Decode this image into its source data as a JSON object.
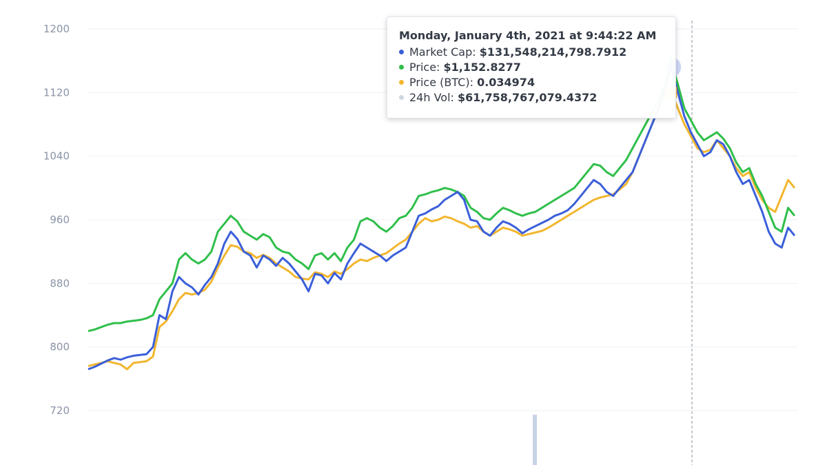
{
  "chart_data": {
    "type": "line",
    "y_ticks": [
      "1200",
      "1120",
      "1040",
      "960",
      "880",
      "800",
      "720"
    ],
    "ylim": [
      720,
      1200
    ],
    "grid": true,
    "series": [
      {
        "key": "market_cap",
        "color": "#3b5fd9",
        "values": [
          772,
          775,
          779,
          783,
          786,
          784,
          787,
          789,
          790,
          791,
          800,
          840,
          835,
          870,
          888,
          880,
          875,
          866,
          878,
          888,
          905,
          930,
          945,
          936,
          920,
          915,
          900,
          915,
          910,
          902,
          912,
          905,
          895,
          885,
          870,
          892,
          890,
          880,
          893,
          885,
          905,
          918,
          930,
          925,
          920,
          915,
          908,
          915,
          920,
          925,
          945,
          965,
          968,
          973,
          977,
          985,
          990,
          995,
          985,
          960,
          958,
          945,
          940,
          950,
          958,
          955,
          950,
          943,
          948,
          952,
          956,
          960,
          965,
          968,
          972,
          980,
          990,
          1000,
          1010,
          1005,
          995,
          990,
          1000,
          1010,
          1020,
          1040,
          1060,
          1080,
          1100,
          1125,
          1152,
          1120,
          1090,
          1070,
          1055,
          1040,
          1045,
          1060,
          1055,
          1040,
          1020,
          1005,
          1010,
          990,
          970,
          945,
          930,
          925,
          950,
          940
        ]
      },
      {
        "key": "price",
        "color": "#2fbf4a",
        "values": [
          820,
          822,
          825,
          828,
          830,
          830,
          832,
          833,
          834,
          836,
          840,
          860,
          870,
          880,
          910,
          918,
          910,
          905,
          910,
          920,
          945,
          955,
          965,
          958,
          945,
          940,
          935,
          942,
          938,
          925,
          920,
          918,
          910,
          905,
          898,
          915,
          918,
          910,
          918,
          908,
          925,
          935,
          958,
          962,
          958,
          950,
          945,
          952,
          962,
          965,
          975,
          990,
          992,
          995,
          997,
          1000,
          998,
          995,
          990,
          975,
          970,
          962,
          960,
          968,
          975,
          972,
          968,
          965,
          968,
          970,
          975,
          980,
          985,
          990,
          995,
          1000,
          1010,
          1020,
          1030,
          1028,
          1020,
          1015,
          1025,
          1035,
          1050,
          1065,
          1080,
          1095,
          1110,
          1130,
          1158,
          1130,
          1100,
          1085,
          1070,
          1060,
          1065,
          1070,
          1062,
          1050,
          1032,
          1020,
          1025,
          1005,
          990,
          970,
          950,
          945,
          975,
          965
        ]
      },
      {
        "key": "price_btc",
        "color": "#f2b62e",
        "values": [
          776,
          778,
          780,
          782,
          780,
          778,
          772,
          780,
          781,
          782,
          788,
          825,
          832,
          845,
          860,
          868,
          866,
          868,
          872,
          882,
          900,
          915,
          928,
          926,
          920,
          918,
          912,
          916,
          912,
          905,
          900,
          895,
          888,
          886,
          885,
          894,
          892,
          888,
          895,
          892,
          898,
          905,
          910,
          908,
          912,
          915,
          918,
          924,
          930,
          935,
          945,
          955,
          962,
          958,
          960,
          964,
          962,
          958,
          955,
          950,
          952,
          945,
          940,
          945,
          950,
          948,
          945,
          940,
          942,
          944,
          946,
          950,
          955,
          960,
          965,
          970,
          975,
          980,
          985,
          988,
          990,
          992,
          998,
          1005,
          1020,
          1040,
          1060,
          1080,
          1100,
          1118,
          1120,
          1100,
          1080,
          1065,
          1050,
          1045,
          1048,
          1060,
          1050,
          1040,
          1025,
          1015,
          1020,
          1000,
          985,
          975,
          970,
          990,
          1010,
          1000
        ]
      }
    ],
    "highlight_index": 90
  },
  "tooltip": {
    "title": "Monday, January 4th, 2021 at 9:44:22 AM",
    "rows": [
      {
        "label": "Market Cap: ",
        "value": "$131,548,214,798.7912",
        "color": "#3b5fd9"
      },
      {
        "label": "Price: ",
        "value": "$1,152.8277",
        "color": "#2fbf4a"
      },
      {
        "label": "Price (BTC): ",
        "value": "0.034974",
        "color": "#f2b62e"
      },
      {
        "label": "24h Vol: ",
        "value": "$61,758,767,079.4372",
        "color": "#cfd6e3"
      }
    ]
  }
}
